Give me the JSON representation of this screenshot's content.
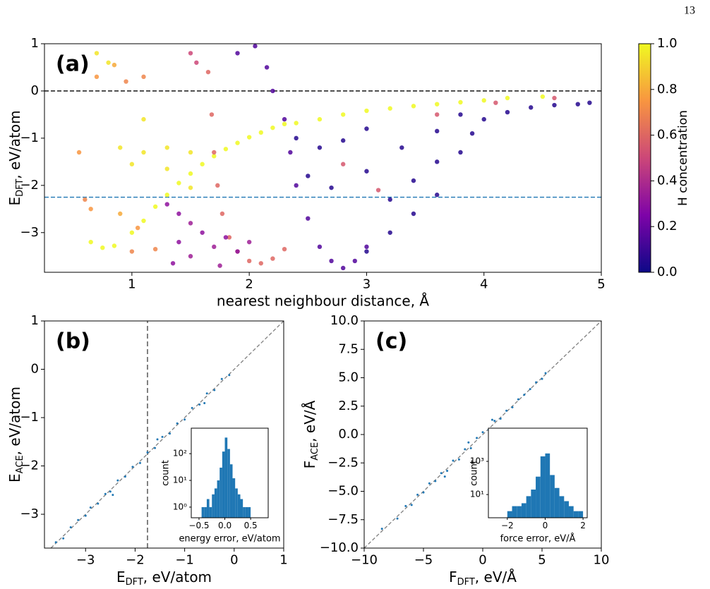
{
  "page_number": "13",
  "chart_data": [
    {
      "type": "scatter",
      "annotation": "(a)",
      "xlabel": "nearest neighbour distance, Å",
      "ylabel": [
        "E",
        "DFT",
        ", eV/atom"
      ],
      "xlim": [
        0.255,
        5
      ],
      "ylim": [
        -3.84,
        1
      ],
      "xticks": [
        1,
        2,
        3,
        4,
        5
      ],
      "yticks": [
        {
          "value": -3,
          "label": "−3"
        },
        {
          "value": -2,
          "label": "−2"
        },
        {
          "value": -1,
          "label": "−1"
        },
        0,
        1
      ],
      "hlines": [
        {
          "y": 0,
          "color": "#000000"
        },
        {
          "y": -2.25,
          "color": "#1f77b4"
        }
      ],
      "cmap": "plasma",
      "colorbar": {
        "label": "H concentration",
        "lim": [
          0,
          1
        ],
        "ticks": [
          {
            "value": 0,
            "label": "0.0"
          },
          0.2,
          0.4,
          0.6,
          0.8,
          {
            "value": 1,
            "label": "1.0"
          }
        ]
      },
      "x": [
        0.65,
        0.75,
        0.85,
        1.0,
        1.1,
        1.2,
        1.3,
        1.4,
        1.5,
        1.6,
        1.7,
        1.8,
        1.9,
        2.0,
        2.1,
        2.2,
        2.3,
        2.4,
        2.6,
        2.8,
        3.0,
        3.2,
        3.4,
        3.6,
        3.8,
        4.0,
        4.2,
        4.5,
        0.9,
        1.1,
        1.3,
        1.0,
        1.3,
        1.5,
        0.7,
        0.8,
        1.1,
        1.5,
        1.65,
        1.68,
        1.7,
        1.73,
        1.77,
        1.83,
        1.9,
        2.0,
        2.1,
        2.2,
        2.3,
        0.55,
        0.6,
        0.65,
        0.9,
        1.05,
        1.2,
        1.0,
        0.7,
        0.95,
        0.85,
        1.1,
        1.5,
        1.55,
        1.3,
        1.4,
        1.5,
        1.4,
        1.6,
        1.7,
        1.8,
        1.5,
        1.9,
        2.0,
        1.35,
        1.75,
        1.9,
        2.05,
        2.15,
        2.2,
        2.3,
        2.35,
        2.4,
        2.5,
        2.6,
        2.7,
        2.8,
        2.9,
        3.0,
        2.4,
        2.6,
        2.8,
        3.0,
        2.5,
        2.7,
        3.0,
        3.3,
        3.6,
        3.2,
        3.4,
        3.6,
        3.0,
        3.2,
        3.4,
        3.6,
        3.8,
        4.0,
        4.2,
        4.4,
        4.6,
        4.8,
        4.9,
        3.8,
        3.9,
        3.6,
        4.1,
        4.6,
        2.8,
        3.1
      ],
      "y": [
        -3.2,
        -3.32,
        -3.28,
        -3.0,
        -2.75,
        -2.45,
        -2.2,
        -1.95,
        -1.75,
        -1.55,
        -1.38,
        -1.23,
        -1.1,
        -0.98,
        -0.88,
        -0.78,
        -0.7,
        -0.68,
        -0.6,
        -0.5,
        -0.42,
        -0.37,
        -0.32,
        -0.28,
        -0.24,
        -0.2,
        -0.15,
        -0.12,
        -1.2,
        -1.3,
        -1.2,
        -1.55,
        -1.65,
        -1.3,
        0.8,
        0.6,
        -0.6,
        -2.05,
        0.4,
        -0.5,
        -1.3,
        -2.0,
        -2.6,
        -3.1,
        -3.4,
        -3.6,
        -3.65,
        -3.55,
        -3.35,
        -1.3,
        -2.3,
        -2.5,
        -2.6,
        -2.9,
        -3.35,
        -3.4,
        0.3,
        0.2,
        0.55,
        0.3,
        0.8,
        0.6,
        -2.4,
        -2.6,
        -2.8,
        -3.2,
        -3.0,
        -3.3,
        -3.1,
        -3.5,
        -3.4,
        -3.2,
        -3.65,
        -3.7,
        0.8,
        0.95,
        0.5,
        0.0,
        -0.6,
        -1.3,
        -2.0,
        -2.7,
        -3.3,
        -3.6,
        -3.75,
        -3.6,
        -3.3,
        -1.0,
        -1.2,
        -1.05,
        -0.8,
        -1.8,
        -2.05,
        -1.7,
        -1.2,
        -0.85,
        -2.3,
        -1.9,
        -1.5,
        -3.4,
        -3.0,
        -2.6,
        -2.2,
        -0.5,
        -0.6,
        -0.45,
        -0.35,
        -0.3,
        -0.28,
        -0.25,
        -1.3,
        -0.9,
        -0.5,
        -0.25,
        -0.15,
        -1.55,
        -2.1
      ],
      "c": [
        1,
        1,
        1,
        1,
        1,
        1,
        1,
        1,
        1,
        1,
        1,
        1,
        1,
        1,
        1,
        1,
        1,
        1,
        1,
        1,
        1,
        1,
        1,
        1,
        1,
        1,
        1,
        1,
        0.95,
        0.95,
        0.95,
        0.95,
        0.95,
        0.95,
        0.95,
        0.95,
        0.95,
        0.95,
        0.6,
        0.6,
        0.6,
        0.6,
        0.6,
        0.6,
        0.6,
        0.6,
        0.6,
        0.6,
        0.6,
        0.75,
        0.7,
        0.75,
        0.8,
        0.75,
        0.7,
        0.7,
        0.75,
        0.7,
        0.8,
        0.7,
        0.5,
        0.5,
        0.3,
        0.3,
        0.35,
        0.3,
        0.3,
        0.35,
        0.3,
        0.35,
        0.3,
        0.35,
        0.3,
        0.35,
        0.15,
        0.15,
        0.15,
        0.15,
        0.15,
        0.15,
        0.15,
        0.15,
        0.15,
        0.15,
        0.15,
        0.15,
        0.15,
        0.05,
        0.05,
        0.05,
        0.05,
        0.05,
        0.05,
        0.05,
        0.05,
        0.05,
        0.05,
        0.05,
        0.05,
        0.05,
        0.05,
        0.05,
        0.05,
        0.05,
        0.05,
        0.05,
        0.05,
        0.05,
        0.05,
        0.05,
        0.05,
        0.05,
        0.55,
        0.55,
        0.55,
        0.55,
        0.55
      ]
    },
    {
      "type": "scatter",
      "annotation": "(b)",
      "color": "#1f77b4",
      "diagonal": true,
      "xlabel": [
        "E",
        "DFT",
        ", eV/atom"
      ],
      "ylabel": [
        "E",
        "ACE",
        ", eV/atom"
      ],
      "xlim": [
        -3.83,
        1
      ],
      "ylim": [
        -3.7,
        1
      ],
      "xticks": [
        {
          "value": -3,
          "label": "−3"
        },
        {
          "value": -2,
          "label": "−2"
        },
        {
          "value": -1,
          "label": "−1"
        },
        0,
        1
      ],
      "yticks": [
        {
          "value": -3,
          "label": "−3"
        },
        {
          "value": -2,
          "label": "−2"
        },
        {
          "value": -1,
          "label": "−1"
        },
        0,
        1
      ],
      "vlines": [
        {
          "x": -1.75,
          "color": "#808080"
        }
      ],
      "x": [
        -3.6,
        -3.45,
        -3.3,
        -3.15,
        -3.0,
        -2.9,
        -2.75,
        -2.6,
        -2.5,
        -2.35,
        -2.2,
        -2.05,
        -1.9,
        -1.75,
        -1.6,
        -1.45,
        -1.3,
        -1.15,
        -1.0,
        -0.85,
        -0.7,
        -0.55,
        -0.4,
        -0.25,
        -0.1,
        -2.45,
        -1.55,
        -0.6
      ],
      "y": [
        -3.58,
        -3.5,
        -3.27,
        -3.12,
        -3.03,
        -2.86,
        -2.78,
        -2.58,
        -2.53,
        -2.3,
        -2.22,
        -2.02,
        -1.94,
        -1.72,
        -1.63,
        -1.4,
        -1.33,
        -1.12,
        -1.04,
        -0.8,
        -0.73,
        -0.5,
        -0.43,
        -0.2,
        -0.12,
        -2.6,
        -1.45,
        -0.7
      ]
    },
    {
      "type": "histogram",
      "color": "#1f77b4",
      "log_y": true,
      "xlabel": "energy error, eV/atom",
      "ylabel": "count",
      "xlim": [
        -0.65,
        0.84
      ],
      "ylim": [
        0.4,
        900
      ],
      "xticks": [
        {
          "value": -0.5,
          "label": "−0.5"
        },
        {
          "value": 0,
          "label": "0.0"
        },
        0.5
      ],
      "yticks": [
        {
          "value": 1,
          "label": "10⁰"
        },
        {
          "value": 10,
          "label": "10¹"
        },
        {
          "value": 100,
          "label": "10²"
        }
      ],
      "bins": [
        -0.45,
        -0.4,
        -0.35,
        -0.3,
        -0.25,
        -0.2,
        -0.15,
        -0.1,
        -0.05,
        0,
        0.05,
        0.1,
        0.15,
        0.2,
        0.25,
        0.3,
        0.35,
        0.4,
        0.45,
        0.5
      ],
      "counts": [
        1,
        1,
        2,
        1,
        3,
        5,
        10,
        30,
        120,
        400,
        150,
        40,
        12,
        5,
        3,
        2,
        1,
        1,
        1
      ]
    },
    {
      "type": "scatter",
      "annotation": "(c)",
      "color": "#1f77b4",
      "diagonal": true,
      "xlabel": [
        "F",
        "DFT",
        ", eV/Å"
      ],
      "ylabel": [
        "F",
        "ACE",
        ", eV/Å"
      ],
      "xlim": [
        -10,
        10
      ],
      "ylim": [
        -10,
        10
      ],
      "xticks": [
        {
          "value": -10,
          "label": "−10"
        },
        {
          "value": -5,
          "label": "−5"
        },
        0,
        5,
        10
      ],
      "yticks": [
        {
          "value": -10,
          "label": "−10.0"
        },
        {
          "value": -7.5,
          "label": "−7.5"
        },
        {
          "value": -5,
          "label": "−5.0"
        },
        {
          "value": -2.5,
          "label": "−2.5"
        },
        {
          "value": 0,
          "label": "0.0"
        },
        2.5,
        {
          "value": 5,
          "label": "5.0"
        },
        7.5,
        {
          "value": 10,
          "label": "10.0"
        }
      ],
      "x": [
        -8.5,
        -7.2,
        -6.5,
        -6.0,
        -5.5,
        -5.0,
        -4.5,
        -4.0,
        -3.5,
        -3.0,
        -2.5,
        -2.0,
        -1.5,
        -1.0,
        -0.5,
        0,
        0.5,
        1.0,
        1.5,
        2.0,
        2.5,
        3.0,
        3.5,
        4.0,
        4.5,
        5.0,
        5.3,
        -1.2,
        0.8,
        -3.2
      ],
      "y": [
        -8.3,
        -7.4,
        -6.3,
        -6.2,
        -5.3,
        -5.1,
        -4.3,
        -4.1,
        -3.4,
        -3.2,
        -2.3,
        -2.2,
        -1.3,
        -1.2,
        -0.3,
        0.2,
        0.4,
        1.2,
        1.4,
        2.1,
        2.4,
        3.1,
        3.5,
        4.0,
        4.6,
        4.9,
        5.4,
        -0.7,
        1.3,
        -3.7
      ]
    },
    {
      "type": "histogram",
      "color": "#1f77b4",
      "log_y": true,
      "xlabel": "force error, eV/Å",
      "ylabel": "count",
      "xlim": [
        -3.0,
        2.22
      ],
      "ylim": [
        0.4,
        100000
      ],
      "xticks": [
        {
          "value": -2,
          "label": "−2"
        },
        0,
        2
      ],
      "yticks": [
        {
          "value": 10,
          "label": "10¹"
        },
        {
          "value": 1000,
          "label": "10³"
        }
      ],
      "bins": [
        -2,
        -1.75,
        -1.5,
        -1.25,
        -1,
        -0.75,
        -0.5,
        -0.25,
        0,
        0.25,
        0.5,
        0.75,
        1,
        1.25,
        1.5,
        1.75,
        2
      ],
      "counts": [
        1,
        2,
        2,
        3,
        8,
        20,
        120,
        2000,
        3000,
        150,
        25,
        8,
        4,
        2,
        1,
        1
      ]
    }
  ]
}
